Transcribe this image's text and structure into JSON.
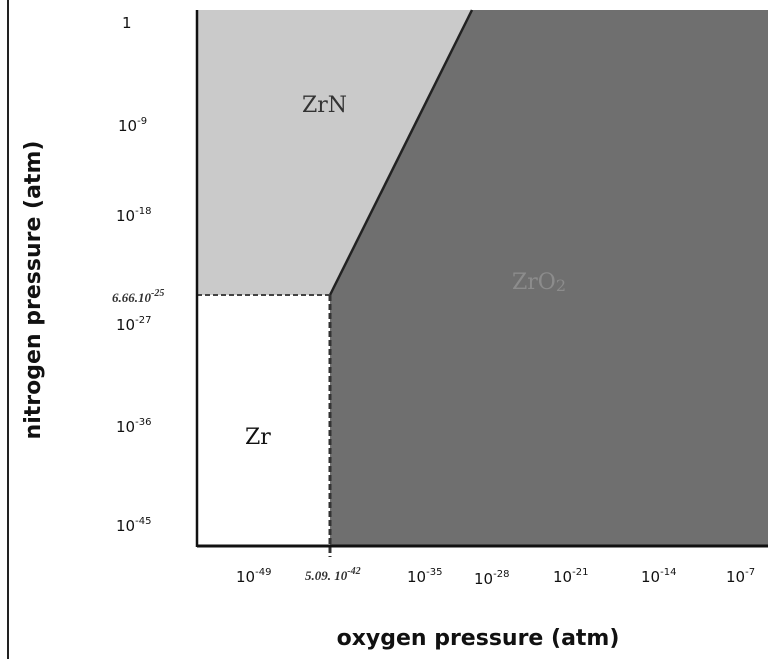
{
  "y_axis": {
    "label": "nitrogen pressure (atm)",
    "ticks": [
      {
        "base": "1",
        "exp": ""
      },
      {
        "base": "10",
        "exp": "-9"
      },
      {
        "base": "10",
        "exp": "-18"
      },
      {
        "base": "10",
        "exp": "-27"
      },
      {
        "base": "10",
        "exp": "-36"
      },
      {
        "base": "10",
        "exp": "-45"
      }
    ],
    "marker": {
      "text": "6.66.10",
      "exp": "-25"
    }
  },
  "x_axis": {
    "label": "oxygen pressure (atm)",
    "ticks": [
      {
        "base": "10",
        "exp": "-49"
      },
      {
        "base": "10",
        "exp": "-35"
      },
      {
        "base": "10",
        "exp": "-28"
      },
      {
        "base": "10",
        "exp": "-21"
      },
      {
        "base": "10",
        "exp": "-14"
      },
      {
        "base": "10",
        "exp": "-7"
      }
    ],
    "marker": {
      "text": "5.09. 10",
      "exp": "-42"
    }
  },
  "regions": [
    {
      "label": "ZrN",
      "sub": "",
      "color": "#cacaca",
      "text_color": "#333333"
    },
    {
      "label": "ZrO",
      "sub": "2",
      "color": "#6f6f6f",
      "text_color": "#8c8c8c"
    },
    {
      "label": "Zr",
      "sub": "",
      "color": "#ffffff",
      "text_color": "#111111"
    }
  ]
}
